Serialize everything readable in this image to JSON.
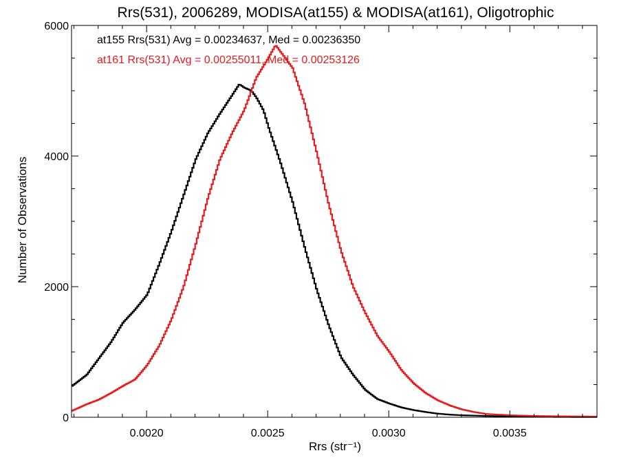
{
  "chart_data": {
    "type": "line",
    "title": "Rrs(531), 2006289, MODISA(at155) & MODISA(at161), Oligotrophic",
    "xlabel": "Rrs (str⁻¹)",
    "ylabel": "Number of Observations",
    "xlim": [
      0.00169,
      0.00386
    ],
    "ylim": [
      0,
      6000
    ],
    "x_ticks": [
      {
        "value": 0.002,
        "label": "0.0020"
      },
      {
        "value": 0.0025,
        "label": "0.0025"
      },
      {
        "value": 0.003,
        "label": "0.0030"
      },
      {
        "value": 0.0035,
        "label": "0.0035"
      }
    ],
    "y_ticks": [
      {
        "value": 0,
        "label": "0"
      },
      {
        "value": 2000,
        "label": "2000"
      },
      {
        "value": 4000,
        "label": "4000"
      },
      {
        "value": 6000,
        "label": "6000"
      }
    ],
    "legend_position": "top-left",
    "series": [
      {
        "name": "at155 Rrs(531) Avg = 0.00234637, Med = 0.00236350",
        "color": "#000000",
        "x": [
          0.00169,
          0.00175,
          0.0018,
          0.00185,
          0.0019,
          0.00195,
          0.002,
          0.00205,
          0.0021,
          0.00215,
          0.0022,
          0.00225,
          0.0023,
          0.00235,
          0.00238,
          0.0024,
          0.00243,
          0.00245,
          0.00248,
          0.0025,
          0.00255,
          0.0026,
          0.00265,
          0.0027,
          0.00275,
          0.0028,
          0.00285,
          0.0029,
          0.00295,
          0.003,
          0.00305,
          0.0031,
          0.00315,
          0.0032,
          0.00325,
          0.0033,
          0.0034,
          0.0035,
          0.0036,
          0.0037,
          0.00386
        ],
        "y": [
          480,
          650,
          900,
          1150,
          1450,
          1650,
          1880,
          2350,
          2850,
          3400,
          3950,
          4350,
          4650,
          4930,
          5100,
          5050,
          5000,
          4900,
          4700,
          4450,
          3900,
          3300,
          2600,
          1950,
          1400,
          920,
          650,
          420,
          280,
          210,
          150,
          110,
          80,
          55,
          40,
          30,
          20,
          12,
          8,
          5,
          3
        ]
      },
      {
        "name": "at161 Rrs(531) Avg = 0.00255011, Med = 0.00253126",
        "color": "#e41a1c",
        "x": [
          0.00169,
          0.00175,
          0.0018,
          0.00185,
          0.0019,
          0.00195,
          0.002,
          0.00205,
          0.0021,
          0.00215,
          0.0022,
          0.00225,
          0.0023,
          0.00235,
          0.0024,
          0.00245,
          0.0025,
          0.00253,
          0.00255,
          0.00258,
          0.0026,
          0.00265,
          0.0027,
          0.00275,
          0.0028,
          0.00285,
          0.0029,
          0.00295,
          0.003,
          0.00305,
          0.0031,
          0.00315,
          0.0032,
          0.00325,
          0.0033,
          0.00335,
          0.0034,
          0.0035,
          0.0036,
          0.0037,
          0.00386
        ],
        "y": [
          100,
          200,
          270,
          370,
          480,
          580,
          800,
          1100,
          1500,
          2000,
          2650,
          3350,
          3950,
          4350,
          4700,
          5200,
          5500,
          5700,
          5600,
          5450,
          5350,
          4800,
          4050,
          3250,
          2550,
          2000,
          1600,
          1250,
          1000,
          720,
          520,
          370,
          260,
          180,
          120,
          80,
          50,
          30,
          20,
          15,
          10
        ]
      }
    ]
  }
}
